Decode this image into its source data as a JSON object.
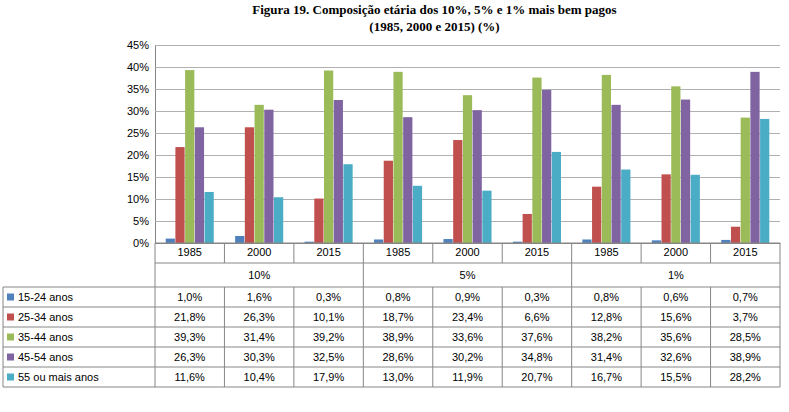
{
  "chart_data": {
    "type": "bar",
    "title": "Figura 19. Composição etária dos 10%, 5% e 1% mais bem pagos",
    "subtitle": "(1985, 2000 e 2015) (%)",
    "categories": [
      "1985",
      "2000",
      "2015",
      "1985",
      "2000",
      "2015",
      "1985",
      "2000",
      "2015"
    ],
    "category_groups": [
      "10%",
      "10%",
      "10%",
      "5%",
      "5%",
      "5%",
      "1%",
      "1%",
      "1%"
    ],
    "series": [
      {
        "name": "15-24 anos",
        "color": "#4f81bd",
        "values": [
          1.0,
          1.6,
          0.3,
          0.8,
          0.9,
          0.3,
          0.8,
          0.6,
          0.7
        ],
        "value_labels": [
          "1,0%",
          "1,6%",
          "0,3%",
          "0,8%",
          "0,9%",
          "0,3%",
          "0,8%",
          "0,6%",
          "0,7%"
        ]
      },
      {
        "name": "25-34 anos",
        "color": "#c0504d",
        "values": [
          21.8,
          26.3,
          10.1,
          18.7,
          23.4,
          6.6,
          12.8,
          15.6,
          3.7
        ],
        "value_labels": [
          "21,8%",
          "26,3%",
          "10,1%",
          "18,7%",
          "23,4%",
          "6,6%",
          "12,8%",
          "15,6%",
          "3,7%"
        ]
      },
      {
        "name": "35-44 anos",
        "color": "#9bbb59",
        "values": [
          39.3,
          31.4,
          39.2,
          38.9,
          33.6,
          37.6,
          38.2,
          35.6,
          28.5
        ],
        "value_labels": [
          "39,3%",
          "31,4%",
          "39,2%",
          "38,9%",
          "33,6%",
          "37,6%",
          "38,2%",
          "35,6%",
          "28,5%"
        ]
      },
      {
        "name": "45-54 anos",
        "color": "#8064a2",
        "values": [
          26.3,
          30.3,
          32.5,
          28.6,
          30.2,
          34.8,
          31.4,
          32.6,
          38.9
        ],
        "value_labels": [
          "26,3%",
          "30,3%",
          "32,5%",
          "28,6%",
          "30,2%",
          "34,8%",
          "31,4%",
          "32,6%",
          "38,9%"
        ]
      },
      {
        "name": "55 ou mais anos",
        "color": "#4bacc6",
        "values": [
          11.6,
          10.4,
          17.9,
          13.0,
          11.9,
          20.7,
          16.7,
          15.5,
          28.2
        ],
        "value_labels": [
          "11,6%",
          "10,4%",
          "17,9%",
          "13,0%",
          "11,9%",
          "20,7%",
          "16,7%",
          "15,5%",
          "28,2%"
        ]
      }
    ],
    "ylim": [
      0,
      45
    ],
    "yticks": [
      {
        "value": 0,
        "label": "0%"
      },
      {
        "value": 5,
        "label": "5%"
      },
      {
        "value": 10,
        "label": "10%"
      },
      {
        "value": 15,
        "label": "15%"
      },
      {
        "value": 20,
        "label": "20%"
      },
      {
        "value": 25,
        "label": "25%"
      },
      {
        "value": 30,
        "label": "30%"
      },
      {
        "value": 35,
        "label": "35%"
      },
      {
        "value": 40,
        "label": "40%"
      },
      {
        "value": 45,
        "label": "45%"
      }
    ],
    "grid": true
  }
}
